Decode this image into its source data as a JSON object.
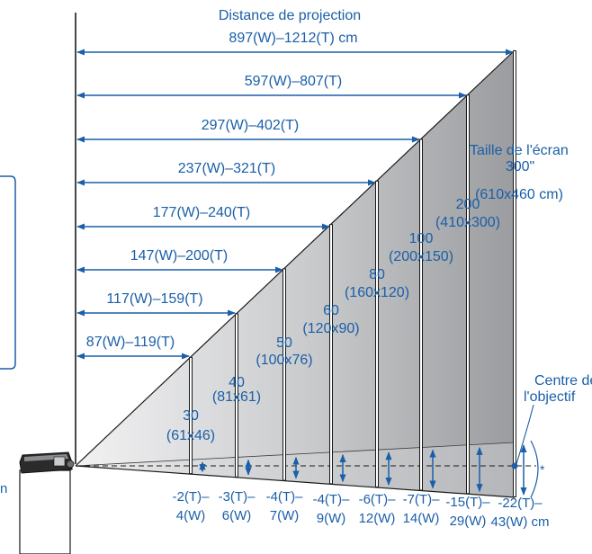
{
  "title": "Distance de projection",
  "max_distance": "897(W)–1212(T) cm",
  "distances": [
    {
      "label": "87(W)–119(T)"
    },
    {
      "label": "117(W)–159(T)"
    },
    {
      "label": "147(W)–200(T)"
    },
    {
      "label": "177(W)–240(T)"
    },
    {
      "label": "237(W)–321(T)"
    },
    {
      "label": "297(W)–402(T)"
    },
    {
      "label": "597(W)–807(T)"
    }
  ],
  "screen_size_title": "Taille de l'écran",
  "screens": [
    {
      "size": "30",
      "dims": "(61x46)",
      "offset_top": "-2(T)–",
      "offset_bottom": "4(W)"
    },
    {
      "size": "40",
      "dims": "(81x61)",
      "offset_top": "-3(T)–",
      "offset_bottom": "6(W)"
    },
    {
      "size": "50",
      "dims": "(100x76)",
      "offset_top": "-4(T)–",
      "offset_bottom": "7(W)"
    },
    {
      "size": "60",
      "dims": "(120x90)",
      "offset_top": "-4(T)–",
      "offset_bottom": "9(W)"
    },
    {
      "size": "80",
      "dims": "(160x120)",
      "offset_top": "-6(T)–",
      "offset_bottom": "12(W)"
    },
    {
      "size": "100",
      "dims": "(200x150)",
      "offset_top": "-7(T)–",
      "offset_bottom": "14(W)"
    },
    {
      "size": "200",
      "dims": "(410x300)",
      "offset_top": "-15(T)–",
      "offset_bottom": "29(W)"
    },
    {
      "size": "300\"",
      "dims": "(610x460 cm)",
      "offset_top": "-22(T)–",
      "offset_bottom": "43(W) cm"
    }
  ],
  "lens_center": {
    "line1": "Centre de",
    "line2": "l'objectif"
  },
  "asterisk": "*",
  "colors": {
    "accent": "#1a5fa8",
    "dark": "#1a1a1a",
    "beam": "#a8aaad"
  }
}
